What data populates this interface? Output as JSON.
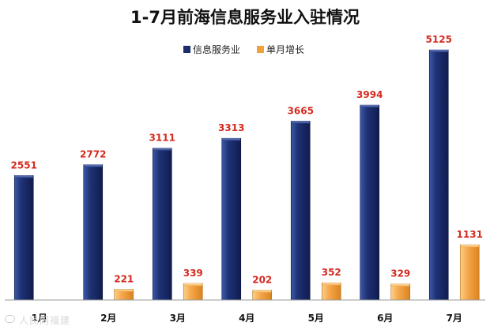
{
  "chart_data": {
    "type": "bar",
    "title": "1-7月前海信息服务业入驻情况",
    "categories": [
      "1月",
      "2月",
      "3月",
      "4月",
      "5月",
      "6月",
      "7月"
    ],
    "series": [
      {
        "name": "信息服务业",
        "values": [
          2551,
          2772,
          3111,
          3313,
          3665,
          3994,
          5125
        ],
        "color": "#1b2d6b"
      },
      {
        "name": "单月增长",
        "values": [
          null,
          221,
          339,
          202,
          352,
          329,
          1131
        ],
        "color": "#f2a13d"
      }
    ],
    "value_labels": [
      [
        "2551",
        "2772",
        "3111",
        "3313",
        "3665",
        "3994",
        "5125"
      ],
      [
        "",
        "221",
        "339",
        "202",
        "352",
        "329",
        "1131"
      ]
    ],
    "ylim": [
      0,
      5500
    ],
    "grid": false,
    "legend_position": "top-center",
    "label_color": "#d42a1f"
  },
  "watermark": {
    "text": "人民网福建"
  }
}
